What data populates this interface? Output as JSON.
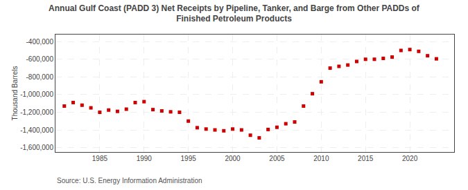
{
  "chart_data": {
    "type": "scatter",
    "title": "Annual Gulf Coast (PADD 3) Net Receipts by Pipeline, Tanker, and Barge from Other PADDs of\nFinished Petroleum Products",
    "ylabel": "Thousand Barrels",
    "annotations": [
      "Source: U.S. Energy Information Administration"
    ],
    "x": [
      1981,
      1982,
      1983,
      1984,
      1985,
      1986,
      1987,
      1988,
      1989,
      1990,
      1991,
      1992,
      1993,
      1994,
      1995,
      1996,
      1997,
      1998,
      1999,
      2000,
      2001,
      2002,
      2003,
      2004,
      2005,
      2006,
      2007,
      2008,
      2009,
      2010,
      2011,
      2012,
      2013,
      2014,
      2015,
      2016,
      2017,
      2018,
      2019,
      2020,
      2021,
      2022,
      2023
    ],
    "values": [
      -1130000,
      -1090000,
      -1120000,
      -1150000,
      -1200000,
      -1175000,
      -1190000,
      -1165000,
      -1090000,
      -1080000,
      -1170000,
      -1185000,
      -1195000,
      -1200000,
      -1300000,
      -1375000,
      -1390000,
      -1400000,
      -1410000,
      -1390000,
      -1400000,
      -1460000,
      -1490000,
      -1395000,
      -1370000,
      -1330000,
      -1310000,
      -1130000,
      -990000,
      -855000,
      -700000,
      -680000,
      -665000,
      -625000,
      -600000,
      -600000,
      -590000,
      -575000,
      -500000,
      -490000,
      -510000,
      -560000,
      -595000
    ],
    "color": "#cc0000",
    "marker": "square",
    "xlim": [
      1980,
      2025
    ],
    "xticks": [
      1985,
      1990,
      1995,
      2000,
      2005,
      2010,
      2015,
      2020
    ],
    "ylim": [
      -1650000,
      -320000
    ],
    "yticks": [
      {
        "value": -400000,
        "label": "-400,000"
      },
      {
        "value": -600000,
        "label": "-600,000"
      },
      {
        "value": -800000,
        "label": "-800,000"
      },
      {
        "value": -1000000,
        "label": "-1,000,000"
      },
      {
        "value": -1200000,
        "label": "-1,200,000"
      },
      {
        "value": -1400000,
        "label": "-1,400,000"
      },
      {
        "value": -1600000,
        "label": "-1,600,000"
      }
    ],
    "grid": true
  }
}
